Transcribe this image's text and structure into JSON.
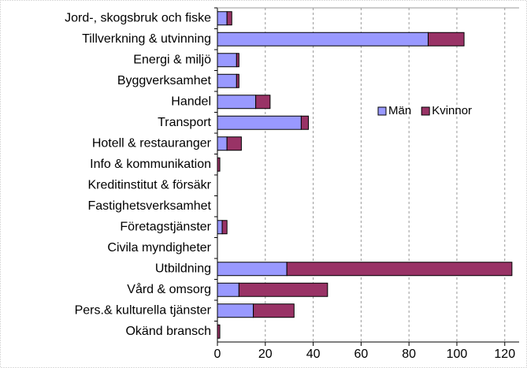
{
  "chart_data": {
    "type": "stacked-barh",
    "categories": [
      "Jord-, skogsbruk och fiske",
      "Tillverkning & utvinning",
      "Energi & miljö",
      "Byggverksamhet",
      "Handel",
      "Transport",
      "Hotell & restauranger",
      "Info & kommunikation",
      "Kreditinstitut & försäkr",
      "Fastighetsverksamhet",
      "Företagstjänster",
      "Civila myndigheter",
      "Utbildning",
      "Vård & omsorg",
      "Pers.& kulturella tjänster",
      "Okänd bransch"
    ],
    "series": [
      {
        "name": "Män",
        "color": "#9999ff",
        "values": [
          4,
          88,
          8,
          8,
          16,
          35,
          4,
          0,
          0,
          0,
          2,
          0,
          29,
          9,
          15,
          0
        ]
      },
      {
        "name": "Kvinnor",
        "color": "#993366",
        "values": [
          2,
          15,
          1,
          1,
          6,
          3,
          6,
          1,
          0,
          0,
          2,
          0,
          94,
          37,
          17,
          1
        ]
      }
    ],
    "xlim": [
      0,
      126
    ],
    "xticks": [
      0,
      20,
      40,
      60,
      80,
      100,
      120
    ],
    "grid": true,
    "legend": "right"
  }
}
